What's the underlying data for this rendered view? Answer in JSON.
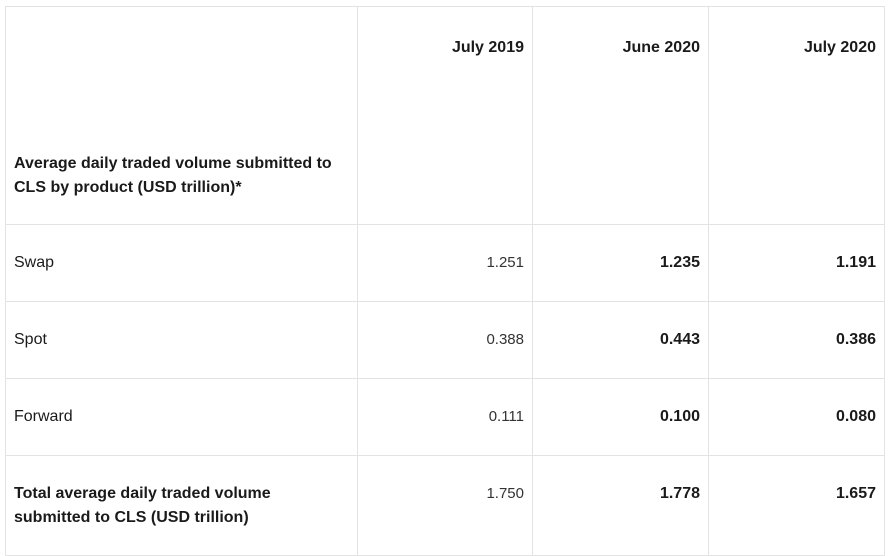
{
  "table": {
    "header": {
      "label": "Average daily traded volume submitted to CLS by product (USD trillion)*",
      "columns": [
        "July 2019",
        "June 2020",
        "July 2020"
      ]
    },
    "rows": [
      {
        "label": "Swap",
        "values": [
          "1.251",
          "1.235",
          "1.191"
        ]
      },
      {
        "label": "Spot",
        "values": [
          "0.388",
          "0.443",
          "0.386"
        ]
      },
      {
        "label": "Forward",
        "values": [
          "0.111",
          "0.100",
          "0.080"
        ]
      }
    ],
    "total": {
      "label": "Total average daily traded volume submitted to CLS (USD trillion)",
      "values": [
        "1.750",
        "1.778",
        "1.657"
      ]
    }
  }
}
